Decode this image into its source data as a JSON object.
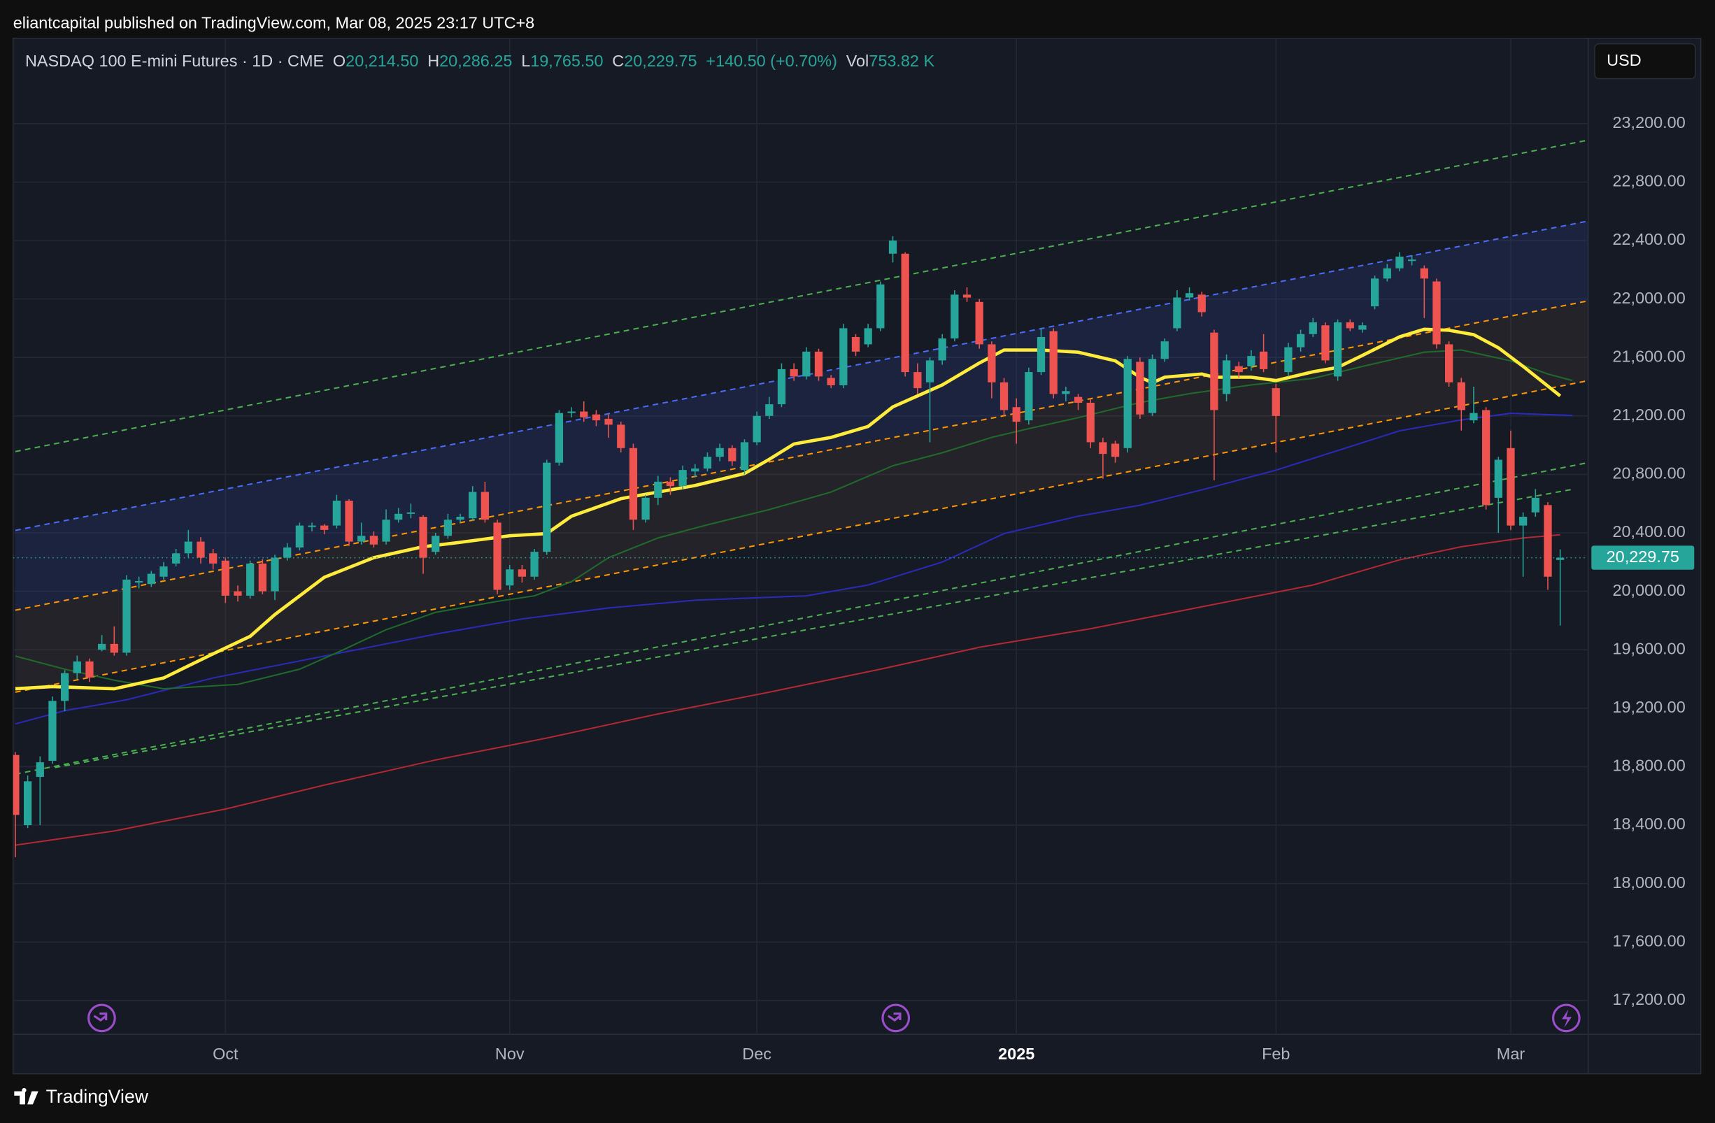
{
  "header": {
    "publisher": "eliantcapital published on TradingView.com, Mar 08, 2025 23:17 UTC+8",
    "symbol": "NASDAQ 100 E-mini Futures · 1D · CME",
    "ohlc": [
      {
        "label": "O",
        "value": "20,214.50"
      },
      {
        "label": "H",
        "value": "20,286.25"
      },
      {
        "label": "L",
        "value": "19,765.50"
      },
      {
        "label": "C",
        "value": "20,229.75"
      }
    ],
    "change": "+140.50 (+0.70%)",
    "volume_label": "Vol",
    "volume": "753.82 K",
    "currency": "USD",
    "brand": "TradingView"
  },
  "chart_data": {
    "type": "candlestick",
    "up_color": "#26a69a",
    "down_color": "#ef5350",
    "grid": true,
    "categories": [
      null,
      null,
      null,
      null,
      null,
      null,
      null,
      null,
      null,
      null,
      null,
      null,
      null,
      null,
      null,
      null,
      null,
      "Oct",
      null,
      null,
      null,
      null,
      null,
      null,
      null,
      null,
      null,
      null,
      null,
      null,
      null,
      null,
      null,
      null,
      null,
      null,
      null,
      null,
      null,
      null,
      "Nov",
      null,
      null,
      null,
      null,
      null,
      null,
      null,
      null,
      null,
      null,
      null,
      null,
      null,
      null,
      null,
      null,
      null,
      null,
      null,
      "Dec",
      null,
      null,
      null,
      null,
      null,
      null,
      null,
      null,
      null,
      null,
      null,
      null,
      null,
      null,
      null,
      null,
      null,
      null,
      null,
      null,
      "2025",
      null,
      null,
      null,
      null,
      null,
      null,
      null,
      null,
      null,
      null,
      null,
      null,
      null,
      null,
      null,
      null,
      null,
      null,
      null,
      null,
      "Feb",
      null,
      null,
      null,
      null,
      null,
      null,
      null,
      null,
      null,
      null,
      null,
      null,
      null,
      null,
      null,
      null,
      null,
      null,
      "Mar",
      null,
      null,
      null,
      null
    ],
    "open": [
      18880,
      18400,
      18730,
      18840,
      19250,
      19440,
      19520,
      19600,
      19640,
      19580,
      20060,
      20050,
      20100,
      20190,
      20260,
      20340,
      20260,
      20210,
      20000,
      19970,
      20190,
      20000,
      20230,
      20300,
      20440,
      20450,
      20450,
      20620,
      20340,
      20380,
      20340,
      20490,
      20530,
      20510,
      20270,
      20380,
      20490,
      20500,
      20680,
      20470,
      20040,
      20150,
      20100,
      20270,
      20880,
      21220,
      21230,
      21210,
      21180,
      21140,
      20980,
      20490,
      20640,
      20750,
      20720,
      20820,
      20840,
      20920,
      20980,
      20830,
      21020,
      21200,
      21280,
      21520,
      21470,
      21640,
      21460,
      21410,
      21740,
      21690,
      21800,
      22310,
      22310,
      21500,
      21430,
      21580,
      21730,
      22030,
      21980,
      21690,
      21430,
      21260,
      21170,
      21500,
      21780,
      21350,
      21330,
      21290,
      21020,
      21010,
      20980,
      21570,
      21220,
      21590,
      21800,
      22010,
      22030,
      21770,
      21350,
      21540,
      21540,
      21640,
      21390,
      21500,
      21670,
      21760,
      21820,
      21470,
      21840,
      21790,
      21950,
      22140,
      22210,
      22260,
      22210,
      22120,
      21690,
      21430,
      21170,
      21240,
      20640,
      20980,
      20450,
      20540,
      20590,
      20214.5
    ],
    "high": [
      18900,
      18740,
      18870,
      19280,
      19460,
      19560,
      19540,
      19700,
      19760,
      20110,
      20100,
      20140,
      20200,
      20290,
      20420,
      20370,
      20290,
      20230,
      20040,
      20210,
      20220,
      20250,
      20330,
      20470,
      20470,
      20460,
      20660,
      20630,
      20470,
      20410,
      20560,
      20570,
      20600,
      20520,
      20400,
      20530,
      20530,
      20720,
      20750,
      20490,
      20180,
      20180,
      20290,
      20900,
      21240,
      21260,
      21300,
      21240,
      21210,
      21160,
      21010,
      20660,
      20790,
      20780,
      20860,
      20870,
      20950,
      21010,
      21000,
      21040,
      21230,
      21330,
      21560,
      21560,
      21670,
      21660,
      21480,
      21830,
      21760,
      21830,
      22120,
      22430,
      22320,
      21560,
      21600,
      21760,
      22060,
      22080,
      22000,
      21710,
      21460,
      21320,
      21530,
      21800,
      21800,
      21400,
      21350,
      21320,
      21050,
      21030,
      21610,
      21600,
      21620,
      21730,
      22060,
      22080,
      22050,
      21790,
      21620,
      21570,
      21650,
      21760,
      21420,
      21700,
      21790,
      21870,
      21840,
      21860,
      21860,
      21840,
      22160,
      22240,
      22320,
      22300,
      22230,
      22140,
      21710,
      21460,
      21400,
      21260,
      20920,
      21100,
      20540,
      20700,
      20610,
      20286.25
    ],
    "low": [
      18180,
      18380,
      18400,
      18820,
      19180,
      19400,
      19380,
      19590,
      19560,
      19560,
      20020,
      20030,
      20080,
      20170,
      20230,
      20190,
      20150,
      19920,
      19930,
      19950,
      19980,
      19940,
      20210,
      20280,
      20410,
      20390,
      20430,
      20310,
      20320,
      20300,
      20320,
      20470,
      20500,
      20120,
      20250,
      20360,
      20470,
      20480,
      20470,
      19980,
      20010,
      20060,
      20080,
      20250,
      20860,
      21190,
      21160,
      21130,
      21050,
      20950,
      20420,
      20470,
      20590,
      20660,
      20700,
      20780,
      20820,
      20890,
      20860,
      20800,
      21000,
      21180,
      21260,
      21440,
      21450,
      21440,
      21390,
      21390,
      21610,
      21670,
      21780,
      22250,
      21470,
      21350,
      21020,
      21550,
      21710,
      21980,
      21660,
      21320,
      21200,
      21010,
      21140,
      21480,
      21320,
      21300,
      21240,
      20980,
      20770,
      20880,
      20950,
      21180,
      21200,
      21570,
      21780,
      21990,
      21880,
      20760,
      21300,
      21460,
      21510,
      21500,
      20950,
      21470,
      21640,
      21740,
      21560,
      21440,
      21780,
      21770,
      21930,
      22120,
      22190,
      22230,
      21870,
      21660,
      21400,
      21100,
      21150,
      20560,
      20400,
      20420,
      20100,
      20510,
      20010,
      19765.5
    ],
    "close": [
      18470,
      18700,
      18830,
      19250,
      19440,
      19520,
      19410,
      19640,
      19580,
      20080,
      20070,
      20120,
      20170,
      20260,
      20340,
      20230,
      20190,
      19970,
      19970,
      20190,
      20000,
      20230,
      20300,
      20450,
      20450,
      20420,
      20620,
      20340,
      20380,
      20320,
      20490,
      20530,
      20540,
      20230,
      20380,
      20490,
      20510,
      20680,
      20490,
      20010,
      20150,
      20100,
      20270,
      20880,
      21220,
      21230,
      21190,
      21170,
      21140,
      20980,
      20490,
      20640,
      20750,
      20720,
      20830,
      20840,
      20920,
      20980,
      20890,
      21020,
      21200,
      21280,
      21520,
      21470,
      21640,
      21470,
      21410,
      21800,
      21640,
      21800,
      22100,
      22400,
      21500,
      21390,
      21580,
      21730,
      22030,
      22010,
      21690,
      21430,
      21240,
      21160,
      21500,
      21740,
      21350,
      21370,
      21290,
      21020,
      20940,
      20920,
      21590,
      21210,
      21590,
      21710,
      22010,
      22040,
      21910,
      21240,
      21580,
      21500,
      21610,
      21520,
      21200,
      21670,
      21760,
      21840,
      21580,
      21840,
      21800,
      21820,
      22140,
      22210,
      22290,
      22270,
      22140,
      21690,
      21430,
      21240,
      21220,
      20590,
      20900,
      20450,
      20510,
      20640,
      20100,
      20229.75
    ],
    "lines": [
      {
        "color": "#4caf50",
        "style": "dashed",
        "x": [
          0,
          127.3
        ],
        "values": [
          20956,
          23088
        ]
      },
      {
        "color": "#4a6cf7",
        "style": "dashed",
        "fill": "rgba(48,70,160,0.22)",
        "x": [
          0,
          127.3
        ],
        "values": [
          20417,
          22534
        ]
      },
      {
        "color": "#ff9800",
        "style": "dashed",
        "fill": "rgba(120,90,70,0.16)",
        "x": [
          0,
          127.3
        ],
        "values": [
          19871,
          21988
        ]
      },
      {
        "color": "#ff9800",
        "style": "dashed",
        "x": [
          0,
          127.3
        ],
        "values": [
          19310,
          21442
        ]
      },
      {
        "color": "#4caf50",
        "style": "dashed",
        "x": [
          0,
          127.3
        ],
        "values": [
          18749,
          20881
        ]
      },
      {
        "color": "#4caf50",
        "style": "dashed",
        "x": [
          3.2,
          126.2
        ],
        "values": [
          18794,
          20701
        ]
      },
      {
        "color": "#b22833",
        "style": "solid",
        "x": [
          0,
          8,
          17,
          25,
          34,
          43,
          52,
          61,
          70,
          78,
          87,
          96,
          105,
          112,
          117,
          122,
          125
        ],
        "values": [
          18263,
          18360,
          18510,
          18674,
          18846,
          18996,
          19161,
          19310,
          19467,
          19617,
          19744,
          19894,
          20043,
          20215,
          20305,
          20365,
          20387
        ]
      },
      {
        "color": "#2a2ab8",
        "style": "solid",
        "x": [
          0,
          4,
          9,
          16,
          25,
          34,
          41,
          48,
          55,
          64,
          69,
          75,
          80,
          86,
          91,
          96,
          102,
          107,
          112,
          117,
          121,
          126
        ],
        "values": [
          19093,
          19183,
          19258,
          19407,
          19557,
          19707,
          19811,
          19886,
          19939,
          19969,
          20043,
          20200,
          20395,
          20514,
          20589,
          20694,
          20829,
          20963,
          21098,
          21173,
          21218,
          21203
        ]
      },
      {
        "color": "#1f6b2a",
        "style": "solid",
        "x": [
          0,
          4,
          8,
          12,
          18,
          23,
          26,
          30,
          34,
          39,
          42,
          45,
          48,
          52,
          56,
          61,
          66,
          71,
          75,
          79,
          82,
          86,
          91,
          95,
          100,
          105,
          109,
          114,
          117,
          121,
          124,
          126
        ],
        "values": [
          19557,
          19467,
          19392,
          19333,
          19363,
          19467,
          19579,
          19737,
          19856,
          19931,
          19969,
          20066,
          20230,
          20365,
          20455,
          20559,
          20679,
          20859,
          20948,
          21053,
          21113,
          21188,
          21292,
          21352,
          21412,
          21457,
          21539,
          21636,
          21651,
          21577,
          21487,
          21442
        ]
      },
      {
        "color": "#ffeb3b",
        "style": "thick",
        "x": [
          0,
          3,
          8,
          12,
          16,
          19,
          21,
          25,
          29,
          33,
          36,
          40,
          43,
          45,
          49,
          52,
          55,
          59,
          61,
          63,
          66,
          69,
          71,
          73,
          75,
          78,
          80,
          83,
          86,
          89,
          91,
          92,
          93,
          96,
          97,
          100,
          102,
          105,
          107,
          109,
          112,
          114,
          116,
          118,
          120,
          122,
          125
        ],
        "values": [
          19333,
          19348,
          19333,
          19407,
          19572,
          19692,
          19841,
          20096,
          20230,
          20305,
          20335,
          20380,
          20395,
          20514,
          20634,
          20679,
          20724,
          20806,
          20903,
          21008,
          21053,
          21128,
          21262,
          21337,
          21412,
          21562,
          21651,
          21651,
          21636,
          21577,
          21465,
          21427,
          21465,
          21487,
          21465,
          21465,
          21442,
          21502,
          21532,
          21614,
          21741,
          21793,
          21786,
          21756,
          21666,
          21539,
          21337
        ]
      }
    ],
    "last_price": {
      "value": 20229.75,
      "label": "20,229.75"
    },
    "xlim": [
      -0.18,
      127.26
    ],
    "ylim": [
      16968,
      23784
    ],
    "yticks": [
      {
        "value": 17200,
        "label": "17,200.00"
      },
      {
        "value": 17600,
        "label": "17,600.00"
      },
      {
        "value": 18000,
        "label": "18,000.00"
      },
      {
        "value": 18400,
        "label": "18,400.00"
      },
      {
        "value": 18800,
        "label": "18,800.00"
      },
      {
        "value": 19200,
        "label": "19,200.00"
      },
      {
        "value": 19600,
        "label": "19,600.00"
      },
      {
        "value": 20000,
        "label": "20,000.00"
      },
      {
        "value": 20400,
        "label": "20,400.00"
      },
      {
        "value": 20800,
        "label": "20,800.00"
      },
      {
        "value": 21200,
        "label": "21,200.00"
      },
      {
        "value": 21600,
        "label": "21,600.00"
      },
      {
        "value": 22000,
        "label": "22,000.00"
      },
      {
        "value": 22400,
        "label": "22,400.00"
      },
      {
        "value": 22800,
        "label": "22,800.00"
      },
      {
        "value": 23200,
        "label": "23,200.00"
      }
    ]
  }
}
